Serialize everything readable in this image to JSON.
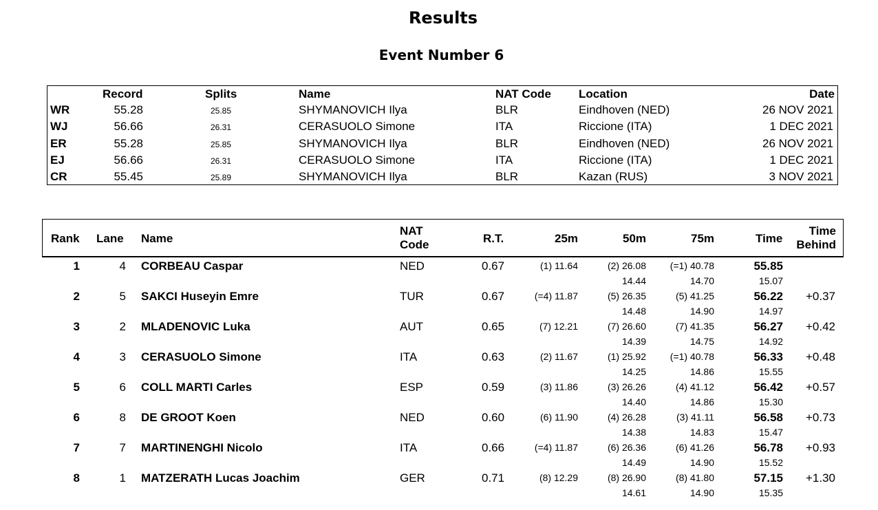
{
  "title": "Results",
  "subtitle": "Event Number 6",
  "records": {
    "headers": {
      "record": "Record",
      "splits": "Splits",
      "name": "Name",
      "nat": "NAT Code",
      "location": "Location",
      "date": "Date"
    },
    "rows": [
      {
        "code": "WR",
        "record": "55.28",
        "splits": "25.85",
        "name": "SHYMANOVICH Ilya",
        "nat": "BLR",
        "location": "Eindhoven (NED)",
        "date": "26 NOV 2021"
      },
      {
        "code": "WJ",
        "record": "56.66",
        "splits": "26.31",
        "name": "CERASUOLO Simone",
        "nat": "ITA",
        "location": "Riccione (ITA)",
        "date": "1 DEC 2021"
      },
      {
        "code": "ER",
        "record": "55.28",
        "splits": "25.85",
        "name": "SHYMANOVICH Ilya",
        "nat": "BLR",
        "location": "Eindhoven (NED)",
        "date": "26 NOV 2021"
      },
      {
        "code": "EJ",
        "record": "56.66",
        "splits": "26.31",
        "name": "CERASUOLO Simone",
        "nat": "ITA",
        "location": "Riccione (ITA)",
        "date": "1 DEC 2021"
      },
      {
        "code": "CR",
        "record": "55.45",
        "splits": "25.89",
        "name": "SHYMANOVICH Ilya",
        "nat": "BLR",
        "location": "Kazan (RUS)",
        "date": "3 NOV 2021"
      }
    ]
  },
  "results": {
    "headers": {
      "rank": "Rank",
      "lane": "Lane",
      "name": "Name",
      "nat1": "NAT",
      "nat2": "Code",
      "rt": "R.T.",
      "s25": "25m",
      "s50": "50m",
      "s75": "75m",
      "time": "Time",
      "behind1": "Time",
      "behind2": "Behind"
    },
    "rows": [
      {
        "rank": "1",
        "lane": "4",
        "name": "CORBEAU Caspar",
        "nat": "NED",
        "rt": "0.67",
        "s25": "(1) 11.64",
        "s50": "(2) 26.08",
        "s75": "(=1) 40.78",
        "time": "55.85",
        "behind": "",
        "sp50": "14.44",
        "sp75": "14.70",
        "sp100": "15.07"
      },
      {
        "rank": "2",
        "lane": "5",
        "name": "SAKCI Huseyin Emre",
        "nat": "TUR",
        "rt": "0.67",
        "s25": "(=4) 11.87",
        "s50": "(5) 26.35",
        "s75": "(5) 41.25",
        "time": "56.22",
        "behind": "+0.37",
        "sp50": "14.48",
        "sp75": "14.90",
        "sp100": "14.97"
      },
      {
        "rank": "3",
        "lane": "2",
        "name": "MLADENOVIC Luka",
        "nat": "AUT",
        "rt": "0.65",
        "s25": "(7) 12.21",
        "s50": "(7) 26.60",
        "s75": "(7) 41.35",
        "time": "56.27",
        "behind": "+0.42",
        "sp50": "14.39",
        "sp75": "14.75",
        "sp100": "14.92"
      },
      {
        "rank": "4",
        "lane": "3",
        "name": "CERASUOLO Simone",
        "nat": "ITA",
        "rt": "0.63",
        "s25": "(2) 11.67",
        "s50": "(1) 25.92",
        "s75": "(=1) 40.78",
        "time": "56.33",
        "behind": "+0.48",
        "sp50": "14.25",
        "sp75": "14.86",
        "sp100": "15.55"
      },
      {
        "rank": "5",
        "lane": "6",
        "name": "COLL MARTI Carles",
        "nat": "ESP",
        "rt": "0.59",
        "s25": "(3) 11.86",
        "s50": "(3) 26.26",
        "s75": "(4) 41.12",
        "time": "56.42",
        "behind": "+0.57",
        "sp50": "14.40",
        "sp75": "14.86",
        "sp100": "15.30"
      },
      {
        "rank": "6",
        "lane": "8",
        "name": "DE GROOT Koen",
        "nat": "NED",
        "rt": "0.60",
        "s25": "(6) 11.90",
        "s50": "(4) 26.28",
        "s75": "(3) 41.11",
        "time": "56.58",
        "behind": "+0.73",
        "sp50": "14.38",
        "sp75": "14.83",
        "sp100": "15.47"
      },
      {
        "rank": "7",
        "lane": "7",
        "name": "MARTINENGHI Nicolo",
        "nat": "ITA",
        "rt": "0.66",
        "s25": "(=4) 11.87",
        "s50": "(6) 26.36",
        "s75": "(6) 41.26",
        "time": "56.78",
        "behind": "+0.93",
        "sp50": "14.49",
        "sp75": "14.90",
        "sp100": "15.52"
      },
      {
        "rank": "8",
        "lane": "1",
        "name": "MATZERATH Lucas Joachim",
        "nat": "GER",
        "rt": "0.71",
        "s25": "(8) 12.29",
        "s50": "(8) 26.90",
        "s75": "(8) 41.80",
        "time": "57.15",
        "behind": "+1.30",
        "sp50": "14.61",
        "sp75": "14.90",
        "sp100": "15.35"
      }
    ]
  }
}
